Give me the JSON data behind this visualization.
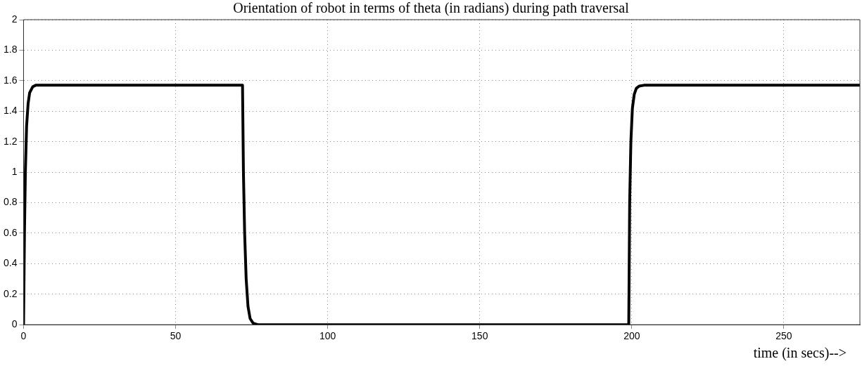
{
  "chart_data": {
    "type": "line",
    "title": "Orientation of robot in terms of theta (in radians) during path traversal",
    "xlabel": "time (in secs)-->",
    "x": [
      0,
      0.3,
      0.6,
      1,
      1.5,
      2,
      3,
      4,
      72,
      72.3,
      72.7,
      73.2,
      73.8,
      74.5,
      75.5,
      77,
      199,
      199.3,
      199.7,
      200.2,
      200.8,
      201.5,
      202.5,
      204,
      275
    ],
    "series": [
      {
        "color": "#000000",
        "values": [
          0,
          0.6,
          1.0,
          1.3,
          1.45,
          1.52,
          1.56,
          1.57,
          1.57,
          1.0,
          0.6,
          0.3,
          0.12,
          0.04,
          0.01,
          0,
          0,
          0.8,
          1.2,
          1.42,
          1.51,
          1.55,
          1.565,
          1.57,
          1.57
        ]
      }
    ],
    "xlim": [
      0,
      275
    ],
    "xticks": [
      0,
      50,
      100,
      150,
      200,
      250
    ],
    "ylim": [
      0,
      2
    ],
    "yticks": [
      0,
      0.2,
      0.4,
      0.6,
      0.8,
      1,
      1.2,
      1.4,
      1.6,
      1.8,
      2
    ],
    "grid": true,
    "legend": false,
    "marker": "none",
    "line_style": "solid"
  }
}
